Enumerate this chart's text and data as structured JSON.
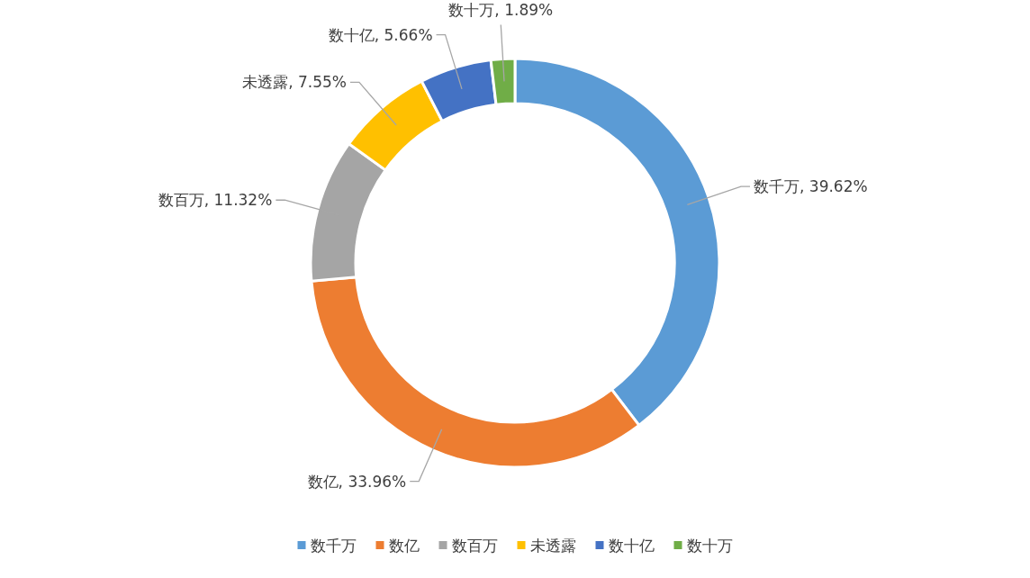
{
  "chart_data": {
    "type": "donut",
    "categories": [
      "数千万",
      "数亿",
      "数百万",
      "未透露",
      "数十亿",
      "数十万"
    ],
    "values": [
      39.62,
      33.96,
      11.32,
      7.55,
      5.66,
      1.89
    ],
    "colors": [
      "#5b9bd5",
      "#ed7d31",
      "#a5a5a5",
      "#ffc000",
      "#4472c4",
      "#70ad47"
    ],
    "value_labels": [
      "数千万, 39.62%",
      "数亿, 33.96%",
      "数百万, 11.32%",
      "未透露, 7.55%",
      "数十亿, 5.66%",
      "数十万, 1.89%"
    ],
    "legend": "bottom"
  }
}
